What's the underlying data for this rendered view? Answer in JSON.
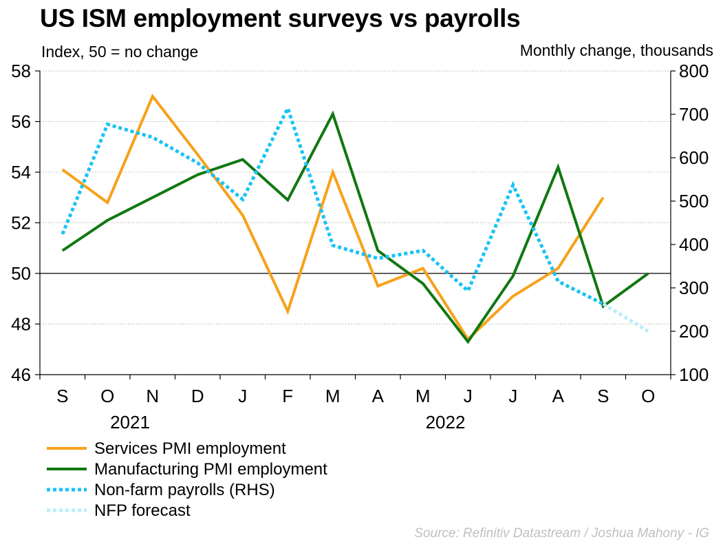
{
  "chart_data": {
    "type": "line",
    "title": "US ISM employment surveys vs payrolls",
    "left_axis_label": "Index, 50 = no change",
    "right_axis_label": "Monthly change, thousands",
    "categories": [
      "S",
      "O",
      "N",
      "D",
      "J",
      "F",
      "M",
      "A",
      "M",
      "J",
      "J",
      "A",
      "S",
      "O"
    ],
    "year_labels": [
      {
        "label": "2021",
        "category_index": 1.5
      },
      {
        "label": "2022",
        "category_index": 8.5
      }
    ],
    "left_axis": {
      "min": 46,
      "max": 58,
      "ticks": [
        46,
        48,
        50,
        52,
        54,
        56,
        58
      ],
      "reference_line": 50
    },
    "right_axis": {
      "min": 100,
      "max": 800,
      "ticks": [
        100,
        200,
        300,
        400,
        500,
        600,
        700,
        800
      ]
    },
    "grid": "horizontal dotted",
    "legend_position": "bottom-left",
    "series": [
      {
        "name": "Services PMI employment",
        "axis": "left",
        "color": "#f7a11a",
        "style": "solid",
        "values": [
          54.1,
          52.8,
          57.0,
          54.7,
          52.3,
          48.5,
          54.0,
          49.5,
          50.2,
          47.4,
          49.1,
          50.2,
          53.0,
          null
        ]
      },
      {
        "name": "Manufacturing PMI employment",
        "axis": "left",
        "color": "#117711",
        "style": "solid",
        "values": [
          50.9,
          52.1,
          53.0,
          53.9,
          54.5,
          52.9,
          56.3,
          50.9,
          49.6,
          47.3,
          49.9,
          54.2,
          48.7,
          50.0
        ]
      },
      {
        "name": "Non-farm payrolls (RHS)",
        "axis": "right",
        "color": "#19c3f4",
        "style": "dotted",
        "values": [
          424,
          677,
          647,
          588,
          504,
          714,
          398,
          368,
          386,
          293,
          537,
          315,
          263,
          null
        ]
      },
      {
        "name": "NFP forecast",
        "axis": "right",
        "color": "#b8eef6",
        "style": "dotted",
        "values": [
          null,
          null,
          null,
          null,
          null,
          null,
          null,
          null,
          null,
          null,
          null,
          null,
          263,
          200
        ]
      }
    ]
  },
  "source": "Source: Refinitiv Datastream / Joshua Mahony - IG"
}
